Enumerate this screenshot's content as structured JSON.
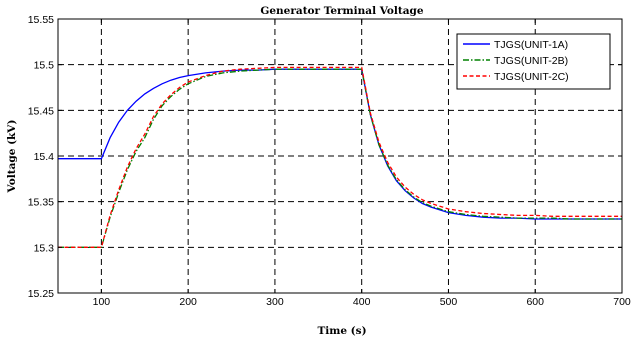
{
  "chart_data": {
    "type": "line",
    "title": "Generator Terminal Voltage",
    "xlabel": "Time (s)",
    "ylabel": "Voltage (kV)",
    "xlim": [
      50,
      700
    ],
    "ylim": [
      15.25,
      15.55
    ],
    "xticks": [
      100,
      200,
      300,
      400,
      500,
      600,
      700
    ],
    "yticks": [
      15.25,
      15.3,
      15.35,
      15.4,
      15.45,
      15.5,
      15.55
    ],
    "grid": true,
    "legend_position": "top-right",
    "series": [
      {
        "name": "TJGS(UNIT-1A)",
        "color": "#0000ff",
        "dash": "",
        "x": [
          50,
          100,
          110,
          120,
          130,
          140,
          150,
          160,
          170,
          180,
          190,
          200,
          220,
          240,
          260,
          280,
          300,
          320,
          340,
          360,
          380,
          400,
          410,
          420,
          430,
          440,
          450,
          460,
          470,
          480,
          490,
          500,
          520,
          540,
          560,
          580,
          600,
          620,
          640,
          660,
          680,
          700
        ],
        "y": [
          15.397,
          15.397,
          15.42,
          15.437,
          15.45,
          15.46,
          15.468,
          15.474,
          15.479,
          15.483,
          15.486,
          15.488,
          15.491,
          15.493,
          15.494,
          15.494,
          15.495,
          15.495,
          15.495,
          15.495,
          15.495,
          15.495,
          15.445,
          15.412,
          15.389,
          15.373,
          15.362,
          15.354,
          15.348,
          15.344,
          15.341,
          15.338,
          15.335,
          15.333,
          15.332,
          15.332,
          15.331,
          15.331,
          15.331,
          15.331,
          15.331,
          15.331
        ]
      },
      {
        "name": "TJGS(UNIT-2B)",
        "color": "#008000",
        "dash": "6 2 1.5 2",
        "x": [
          50,
          100,
          110,
          120,
          130,
          140,
          150,
          160,
          170,
          180,
          190,
          200,
          220,
          240,
          260,
          280,
          300,
          320,
          340,
          360,
          380,
          400,
          410,
          420,
          430,
          440,
          450,
          460,
          470,
          480,
          490,
          500,
          520,
          540,
          560,
          580,
          600,
          620,
          640,
          660,
          680,
          700
        ],
        "y": [
          15.3,
          15.3,
          15.333,
          15.36,
          15.385,
          15.405,
          15.42,
          15.44,
          15.455,
          15.465,
          15.473,
          15.479,
          15.487,
          15.491,
          15.493,
          15.494,
          15.495,
          15.495,
          15.495,
          15.495,
          15.495,
          15.495,
          15.445,
          15.412,
          15.39,
          15.374,
          15.363,
          15.355,
          15.349,
          15.345,
          15.342,
          15.339,
          15.336,
          15.334,
          15.333,
          15.332,
          15.332,
          15.332,
          15.331,
          15.331,
          15.331,
          15.331
        ]
      },
      {
        "name": "TJGS(UNIT-2C)",
        "color": "#ff0000",
        "dash": "4 2.5",
        "x": [
          50,
          100,
          110,
          120,
          130,
          140,
          150,
          160,
          170,
          180,
          190,
          200,
          220,
          240,
          260,
          280,
          300,
          320,
          340,
          360,
          380,
          400,
          410,
          420,
          430,
          440,
          450,
          460,
          470,
          480,
          490,
          500,
          520,
          540,
          560,
          580,
          600,
          620,
          640,
          660,
          680,
          700
        ],
        "y": [
          15.3,
          15.3,
          15.335,
          15.363,
          15.388,
          15.408,
          15.424,
          15.443,
          15.457,
          15.467,
          15.475,
          15.481,
          15.488,
          15.493,
          15.495,
          15.496,
          15.497,
          15.497,
          15.497,
          15.497,
          15.497,
          15.497,
          15.447,
          15.415,
          15.393,
          15.377,
          15.366,
          15.358,
          15.352,
          15.348,
          15.345,
          15.342,
          15.339,
          15.337,
          15.336,
          15.335,
          15.335,
          15.334,
          15.334,
          15.334,
          15.334,
          15.334
        ]
      }
    ]
  }
}
